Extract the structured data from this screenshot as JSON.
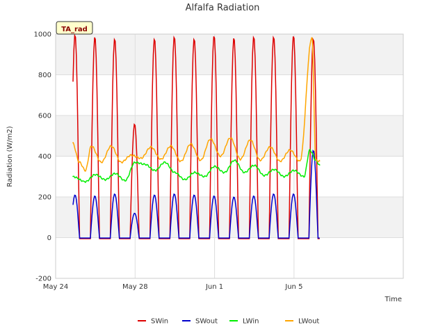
{
  "chart_data": {
    "type": "line",
    "title": "Alfalfa Radiation",
    "xlabel": "Time",
    "ylabel": "Radiation (W/m2)",
    "badge": "TA_rad",
    "xlim": [
      0,
      17.5
    ],
    "ylim": [
      -200,
      1000
    ],
    "x_ticks": [
      {
        "value": 0,
        "label": "May 24"
      },
      {
        "value": 4,
        "label": "May 28"
      },
      {
        "value": 8,
        "label": "Jun 1"
      },
      {
        "value": 12,
        "label": "Jun 5"
      }
    ],
    "y_ticks": [
      -200,
      0,
      200,
      400,
      600,
      800,
      1000
    ],
    "legend_position": "bottom",
    "grid": true,
    "x_range_data": [
      0.85,
      13.3
    ],
    "series": [
      {
        "name": "SWin",
        "color": "#dd0000",
        "peaks": [
          1000,
          990,
          980,
          560,
          980,
          990,
          980,
          995,
          985,
          990,
          990,
          995,
          980
        ],
        "values": [
          [
            0.85,
            1000
          ],
          [
            1.1,
            -5
          ],
          [
            1.5,
            -5
          ],
          [
            1.8,
            990
          ],
          [
            2.1,
            -5
          ],
          [
            2.5,
            -5
          ],
          [
            2.8,
            980
          ],
          [
            3.1,
            -5
          ],
          [
            3.5,
            -5
          ],
          [
            3.75,
            560
          ],
          [
            4.1,
            -5
          ],
          [
            4.4,
            -5
          ],
          [
            4.8,
            980
          ],
          [
            5.1,
            -5
          ],
          [
            5.4,
            -5
          ],
          [
            5.8,
            990
          ],
          [
            6.1,
            -5
          ],
          [
            6.4,
            -5
          ],
          [
            6.75,
            980
          ],
          [
            7.1,
            -5
          ],
          [
            7.4,
            -5
          ],
          [
            7.8,
            995
          ],
          [
            8.1,
            -5
          ],
          [
            8.4,
            -5
          ],
          [
            8.75,
            985
          ],
          [
            9.1,
            -5
          ],
          [
            9.4,
            -5
          ],
          [
            9.8,
            990
          ],
          [
            10.1,
            -5
          ],
          [
            10.4,
            -5
          ],
          [
            10.75,
            990
          ],
          [
            11.1,
            -5
          ],
          [
            11.4,
            -5
          ],
          [
            11.75,
            995
          ],
          [
            12.1,
            -5
          ],
          [
            12.4,
            -5
          ],
          [
            12.8,
            980
          ],
          [
            13.3,
            -5
          ]
        ]
      },
      {
        "name": "SWout",
        "color": "#0000cc",
        "peaks": [
          210,
          205,
          215,
          120,
          210,
          215,
          210,
          205,
          200,
          205,
          215,
          215,
          430
        ],
        "values": [
          [
            0.85,
            210
          ],
          [
            1.1,
            -2
          ],
          [
            1.5,
            -2
          ],
          [
            1.8,
            205
          ],
          [
            2.1,
            -2
          ],
          [
            2.5,
            -2
          ],
          [
            2.8,
            215
          ],
          [
            3.1,
            -2
          ],
          [
            3.5,
            -2
          ],
          [
            3.75,
            120
          ],
          [
            4.1,
            -2
          ],
          [
            4.4,
            -2
          ],
          [
            4.8,
            210
          ],
          [
            5.1,
            -2
          ],
          [
            5.4,
            -2
          ],
          [
            5.8,
            215
          ],
          [
            6.1,
            -2
          ],
          [
            6.4,
            -2
          ],
          [
            6.75,
            210
          ],
          [
            7.1,
            -2
          ],
          [
            7.4,
            -2
          ],
          [
            7.8,
            205
          ],
          [
            8.1,
            -2
          ],
          [
            8.4,
            -2
          ],
          [
            8.75,
            200
          ],
          [
            9.1,
            -2
          ],
          [
            9.4,
            -2
          ],
          [
            9.8,
            205
          ],
          [
            10.1,
            -2
          ],
          [
            10.4,
            -2
          ],
          [
            10.75,
            215
          ],
          [
            11.1,
            -2
          ],
          [
            11.4,
            -2
          ],
          [
            11.75,
            215
          ],
          [
            12.1,
            -2
          ],
          [
            12.4,
            -2
          ],
          [
            12.8,
            430
          ],
          [
            13.3,
            -2
          ]
        ]
      },
      {
        "name": "LWin",
        "color": "#00ee00",
        "values": [
          [
            0.85,
            300
          ],
          [
            1.5,
            275
          ],
          [
            2.0,
            310
          ],
          [
            2.5,
            285
          ],
          [
            3.0,
            315
          ],
          [
            3.5,
            280
          ],
          [
            4.0,
            370
          ],
          [
            4.5,
            360
          ],
          [
            5.0,
            330
          ],
          [
            5.5,
            370
          ],
          [
            6.0,
            320
          ],
          [
            6.5,
            285
          ],
          [
            7.0,
            320
          ],
          [
            7.5,
            300
          ],
          [
            8.0,
            350
          ],
          [
            8.5,
            320
          ],
          [
            9.0,
            380
          ],
          [
            9.5,
            320
          ],
          [
            10.0,
            355
          ],
          [
            10.5,
            305
          ],
          [
            11.0,
            335
          ],
          [
            11.5,
            300
          ],
          [
            12.0,
            330
          ],
          [
            12.5,
            300
          ],
          [
            12.8,
            430
          ],
          [
            13.1,
            380
          ],
          [
            13.3,
            355
          ]
        ]
      },
      {
        "name": "LWout",
        "color": "#ffa500",
        "values": [
          [
            0.85,
            465
          ],
          [
            1.2,
            370
          ],
          [
            1.5,
            330
          ],
          [
            1.8,
            450
          ],
          [
            2.3,
            370
          ],
          [
            2.8,
            450
          ],
          [
            3.3,
            370
          ],
          [
            3.8,
            405
          ],
          [
            4.3,
            390
          ],
          [
            4.8,
            445
          ],
          [
            5.3,
            385
          ],
          [
            5.8,
            450
          ],
          [
            6.3,
            375
          ],
          [
            6.8,
            460
          ],
          [
            7.3,
            380
          ],
          [
            7.8,
            485
          ],
          [
            8.3,
            400
          ],
          [
            8.8,
            490
          ],
          [
            9.3,
            385
          ],
          [
            9.8,
            480
          ],
          [
            10.3,
            380
          ],
          [
            10.8,
            445
          ],
          [
            11.3,
            375
          ],
          [
            11.8,
            430
          ],
          [
            12.3,
            375
          ],
          [
            12.9,
            985
          ],
          [
            13.1,
            380
          ],
          [
            13.3,
            375
          ]
        ]
      }
    ]
  }
}
